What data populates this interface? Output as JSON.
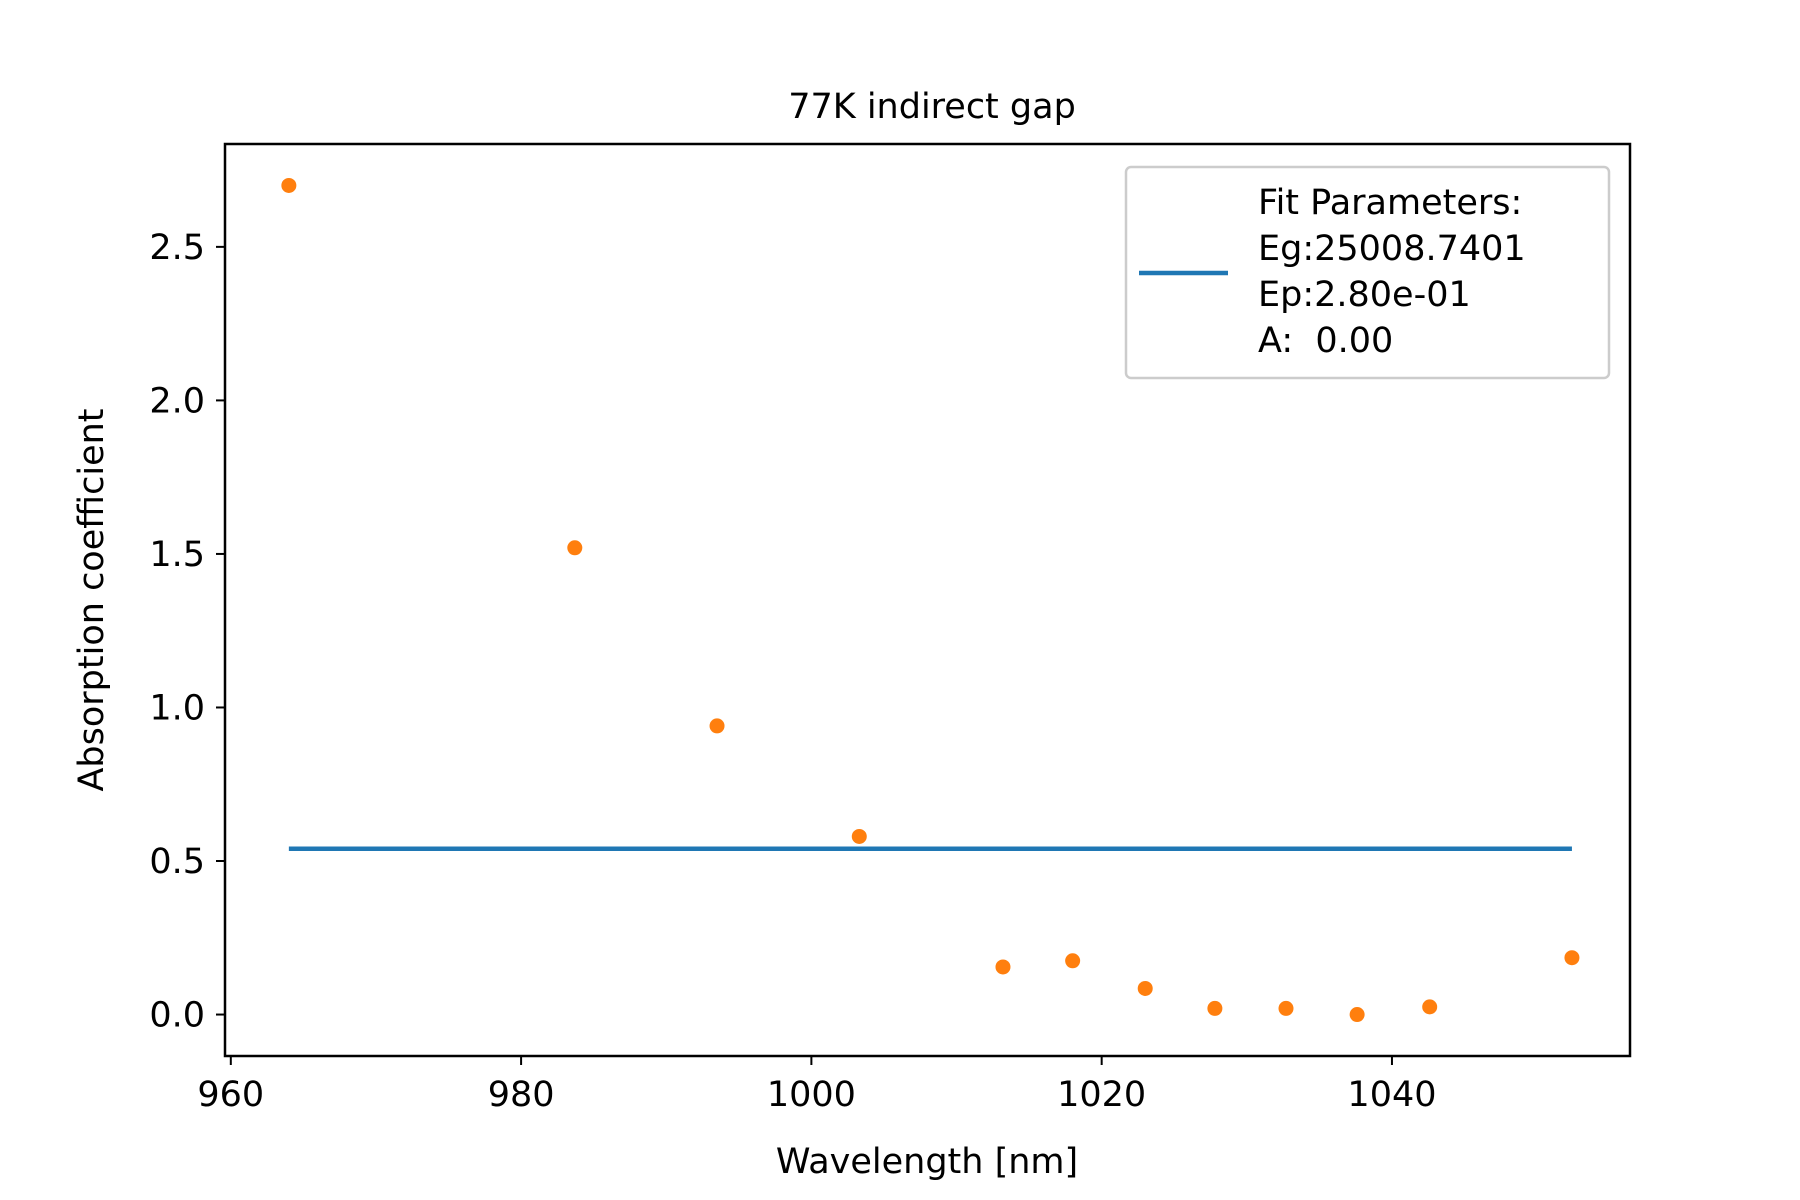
{
  "chart_data": {
    "type": "scatter",
    "title": "77K indirect gap",
    "xlabel": "Wavelength [nm]",
    "ylabel": "Absorption coefficient",
    "xlim": [
      959.6,
      1056.4
    ],
    "ylim": [
      -0.135,
      2.835
    ],
    "x_ticks": [
      960,
      980,
      1000,
      1020,
      1040
    ],
    "x_tick_labels": [
      "960",
      "980",
      "1000",
      "1020",
      "1040"
    ],
    "y_ticks": [
      0.0,
      0.5,
      1.0,
      1.5,
      2.0,
      2.5
    ],
    "y_tick_labels": [
      "0.0",
      "0.5",
      "1.0",
      "1.5",
      "2.0",
      "2.5"
    ],
    "grid": false,
    "legend_position": "top-right",
    "legend_text": [
      "Fit Parameters:",
      "Eg:25008.7401",
      "Ep:2.80e-01",
      "A:  0.00"
    ],
    "series": [
      {
        "kind": "line",
        "color": "#1f77b4",
        "x": [
          964.0,
          1052.4
        ],
        "y": [
          0.54,
          0.54
        ]
      },
      {
        "kind": "scatter",
        "color": "#ff7f0e",
        "x": [
          964.0,
          983.7,
          993.5,
          1003.3,
          1013.2,
          1018.0,
          1023.0,
          1027.8,
          1032.7,
          1037.6,
          1042.6,
          1052.4
        ],
        "y": [
          2.7,
          1.52,
          0.94,
          0.58,
          0.155,
          0.175,
          0.085,
          0.02,
          0.02,
          0.0,
          0.025,
          0.185
        ]
      }
    ]
  }
}
